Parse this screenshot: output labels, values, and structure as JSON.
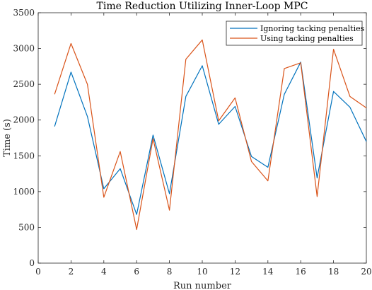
{
  "chart_data": {
    "type": "line",
    "title": "Time Reduction Utilizing Inner-Loop MPC",
    "xlabel": "Run number",
    "ylabel": "Time (s)",
    "xlim": [
      0,
      20
    ],
    "ylim": [
      0,
      3500
    ],
    "xticks": [
      "0",
      "2",
      "4",
      "6",
      "8",
      "10",
      "12",
      "14",
      "16",
      "18",
      "20"
    ],
    "yticks": [
      "0",
      "500",
      "1000",
      "1500",
      "2000",
      "2500",
      "3000",
      "3500"
    ],
    "grid": false,
    "legend_position": "top-right",
    "x": [
      1,
      2,
      3,
      4,
      5,
      6,
      7,
      8,
      9,
      10,
      11,
      12,
      13,
      14,
      15,
      16,
      17,
      18,
      19,
      20
    ],
    "series": [
      {
        "name": "Ignoring tacking penalties",
        "color": "#0072BD",
        "values": [
          1910,
          2670,
          2050,
          1040,
          1320,
          680,
          1790,
          970,
          2330,
          2760,
          1940,
          2190,
          1490,
          1340,
          2360,
          2810,
          1190,
          2400,
          2180,
          1700
        ]
      },
      {
        "name": "Using tacking penalties",
        "color": "#D95319",
        "values": [
          2360,
          3070,
          2500,
          920,
          1560,
          470,
          1740,
          740,
          2850,
          3120,
          1990,
          2310,
          1420,
          1150,
          2720,
          2800,
          930,
          2990,
          2330,
          2170
        ]
      }
    ]
  }
}
